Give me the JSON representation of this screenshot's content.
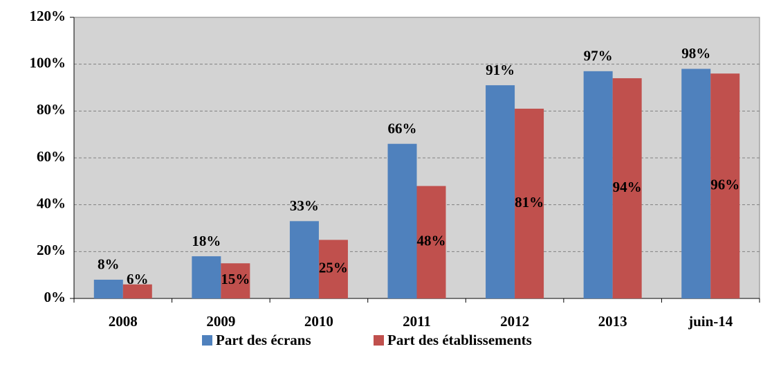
{
  "chart_data": {
    "type": "bar",
    "categories": [
      "2008",
      "2009",
      "2010",
      "2011",
      "2012",
      "2013",
      "juin-14"
    ],
    "series": [
      {
        "name": "Part des écrans",
        "color": "#4f81bd",
        "values": [
          8,
          18,
          33,
          66,
          91,
          97,
          98
        ],
        "value_labels": [
          "8%",
          "18%",
          "33%",
          "66%",
          "91%",
          "97%",
          "98%"
        ]
      },
      {
        "name": "Part des établissements",
        "color": "#c0504d",
        "values": [
          6,
          15,
          25,
          48,
          81,
          94,
          96
        ],
        "value_labels": [
          "6%",
          "15%",
          "25%",
          "48%",
          "81%",
          "94%",
          "96%"
        ]
      }
    ],
    "ylim": [
      0,
      120
    ],
    "yticks": [
      {
        "value": 0,
        "label": "0%"
      },
      {
        "value": 20,
        "label": "20%"
      },
      {
        "value": 40,
        "label": "40%"
      },
      {
        "value": 60,
        "label": "60%"
      },
      {
        "value": 80,
        "label": "80%"
      },
      {
        "value": 100,
        "label": "100%"
      },
      {
        "value": 120,
        "label": "120%"
      }
    ],
    "grid": true,
    "legend": "bottom"
  }
}
